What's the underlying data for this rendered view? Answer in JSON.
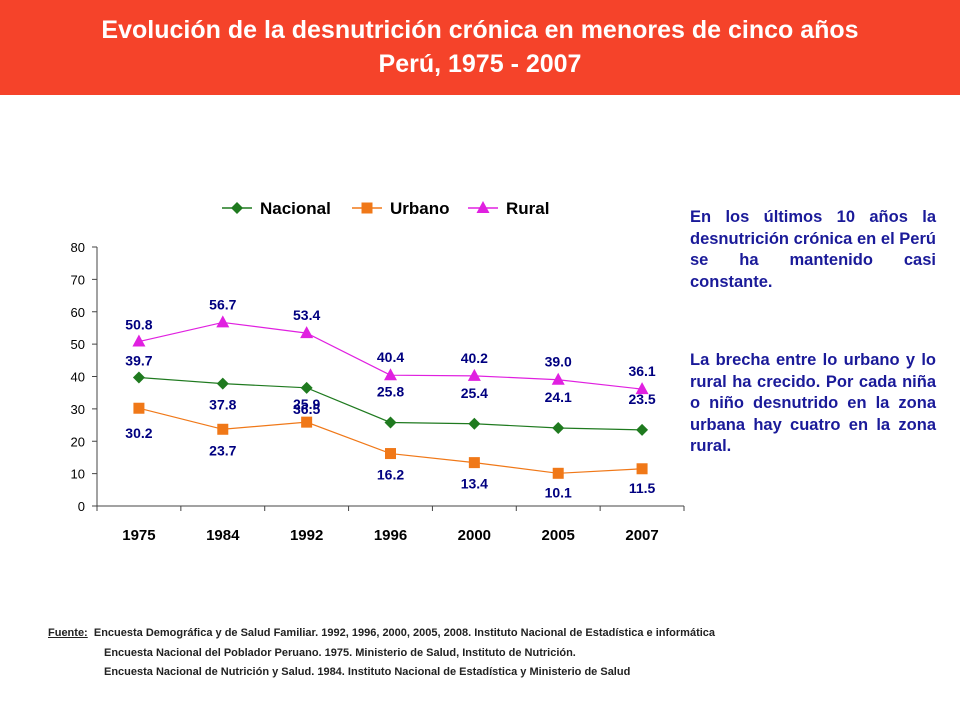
{
  "header": {
    "title_line1": "Evolución de la desnutrición crónica en menores de cinco años",
    "title_line2": "Perú, 1975 - 2007"
  },
  "chart_data": {
    "type": "line",
    "title": "",
    "xlabel": "",
    "ylabel": "",
    "categories": [
      "1975",
      "1984",
      "1992",
      "1996",
      "2000",
      "2005",
      "2007"
    ],
    "ylim": [
      0,
      80
    ],
    "yticks": [
      0,
      10,
      20,
      30,
      40,
      50,
      60,
      70,
      80
    ],
    "legend_position": "top",
    "series": [
      {
        "name": "Nacional",
        "color": "#1f7a1f",
        "marker": "diamond",
        "values": [
          39.7,
          37.8,
          36.5,
          25.8,
          25.4,
          24.1,
          23.5
        ]
      },
      {
        "name": "Urbano",
        "color": "#f07818",
        "marker": "square",
        "values": [
          30.2,
          23.7,
          25.9,
          16.2,
          13.4,
          10.1,
          11.5
        ]
      },
      {
        "name": "Rural",
        "color": "#e020e0",
        "marker": "triangle",
        "values": [
          50.8,
          56.7,
          53.4,
          40.4,
          40.2,
          39.0,
          36.1
        ]
      }
    ],
    "data_labels": {
      "Nacional": [
        "39.7",
        "37.8",
        "36.5",
        "25.8",
        "25.4",
        "24.1",
        "23.5"
      ],
      "Urbano": [
        "30.2",
        "23.7",
        "25.9",
        "16.2",
        "13.4",
        "10.1",
        "11.5"
      ],
      "Rural": [
        "50.8",
        "56.7",
        "53.4",
        "40.4",
        "40.2",
        "39.0",
        "36.1"
      ]
    }
  },
  "side_text": {
    "p1": "En los últimos 10 años la desnutrición crónica en el Perú se ha mantenido casi constante.",
    "p2": "La brecha entre lo urbano y lo rural ha crecido. Por cada niña o niño desnutrido en la zona urbana hay cuatro en la zona rural."
  },
  "source": {
    "label": "Fuente:",
    "line1": "Encuesta Demográfica y de Salud Familiar. 1992, 1996, 2000, 2005, 2008. Instituto Nacional de Estadística e informática",
    "line2": "Encuesta Nacional del Poblador Peruano. 1975. Ministerio de Salud, Instituto de Nutrición.",
    "line3": "Encuesta Nacional de Nutrición y Salud. 1984. Instituto Nacional de Estadística y Ministerio de Salud"
  },
  "colors": {
    "header_bg": "#f5432a",
    "text_blue": "#1a1a99"
  }
}
